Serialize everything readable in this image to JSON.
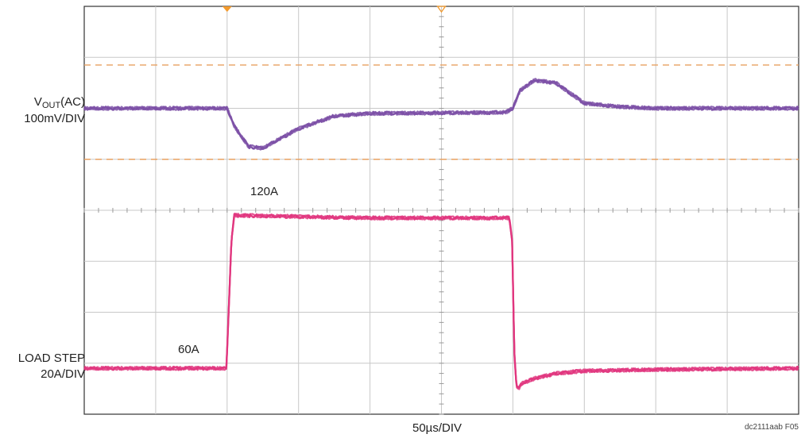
{
  "chart_data": {
    "type": "line",
    "grid": true,
    "divisions": {
      "x": 10,
      "y": 8
    },
    "x_scale_label": "50µs/DIV",
    "figure_id": "dc2111aab F05",
    "channels": [
      {
        "name_main": "V",
        "name_sub": "OUT",
        "name_tail": "(AC)",
        "scale": "100mV/DIV",
        "color": "#7b4fa6",
        "unit_per_div_mV": 100,
        "baseline_div": 6.0,
        "x_div": [
          0,
          2.0,
          2.1,
          2.3,
          2.5,
          3.0,
          3.5,
          4.0,
          5.0,
          5.9,
          6.0,
          6.1,
          6.3,
          6.6,
          7.0,
          7.5,
          8.0,
          10.0
        ],
        "y_mV": [
          0,
          0,
          -35,
          -75,
          -78,
          -40,
          -15,
          -10,
          -9,
          -8,
          0,
          35,
          55,
          50,
          10,
          3,
          0,
          0
        ]
      },
      {
        "name": "LOAD STEP",
        "scale": "20A/DIV",
        "color": "#e0357e",
        "unit_per_div_A": 20,
        "baseline_div": 0.9,
        "x_div": [
          0,
          1.99,
          2.06,
          2.1,
          2.2,
          3.0,
          4.0,
          5.0,
          5.95,
          5.99,
          6.02,
          6.05,
          6.08,
          6.12,
          6.3,
          6.6,
          7.0,
          8.0,
          10.0
        ],
        "y_A": [
          60,
          60,
          110,
          120,
          120,
          119.5,
          119,
          119,
          119,
          110,
          66,
          53,
          52,
          54,
          56,
          58,
          59,
          59.5,
          60
        ]
      }
    ],
    "annotations": [
      "120A",
      "60A"
    ],
    "reference_lines": {
      "type": "dashed",
      "color": "#e8a060",
      "count": 2
    },
    "trigger_markers": {
      "count": 2,
      "color": "#f29a2e"
    }
  }
}
